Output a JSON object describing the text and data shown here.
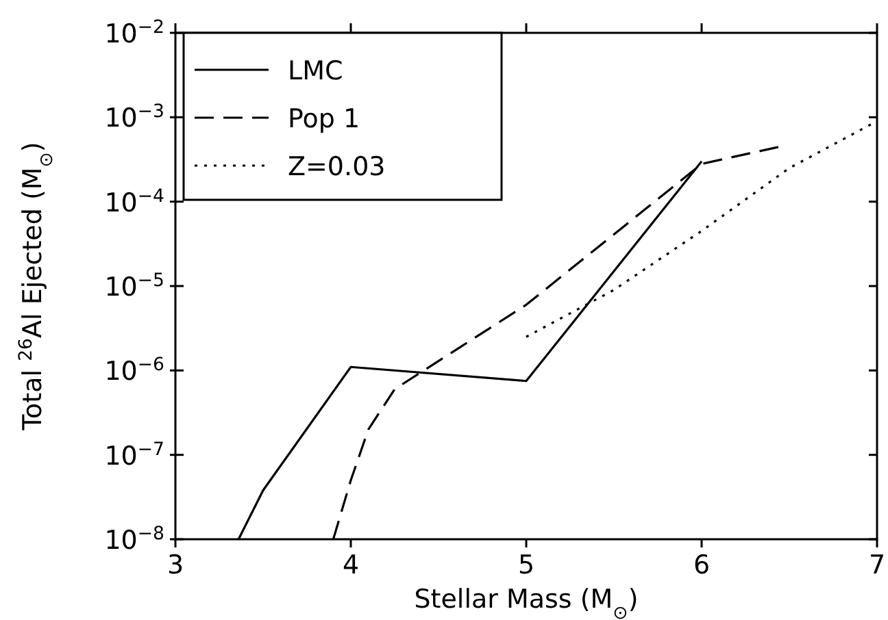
{
  "chart_data": {
    "type": "line",
    "xlabel": "Stellar Mass (M$_{⊙}$)",
    "ylabel": "Total $^{26}$Al Ejected (M$_{⊙}$)",
    "log": "y",
    "xlim": [
      3,
      7
    ],
    "ylim": [
      1e-08,
      0.01
    ],
    "xticks": [
      3,
      4,
      5,
      6,
      7
    ],
    "yticks": [
      {
        "value": 1e-08,
        "label": "10$^{−8}$"
      },
      {
        "value": 1e-07,
        "label": "10$^{−7}$"
      },
      {
        "value": 1e-06,
        "label": "10$^{−6}$"
      },
      {
        "value": 1e-05,
        "label": "10$^{−5}$"
      },
      {
        "value": 0.0001,
        "label": "10$^{−4}$"
      },
      {
        "value": 0.001,
        "label": "10$^{−3}$"
      },
      {
        "value": 0.01,
        "label": "10$^{−2}$"
      }
    ],
    "legend": "top left",
    "grid": false,
    "series": [
      {
        "name": "LMC",
        "color": "#000000",
        "line_style": "solid",
        "x": [
          3.36,
          3.5,
          4,
          5,
          6
        ],
        "values": [
          1e-08,
          3.8e-08,
          1.1e-06,
          7.5e-07,
          0.0003
        ]
      },
      {
        "name": "Pop 1",
        "color": "#000000",
        "line_style": "dashed",
        "x": [
          3.9,
          4,
          4.1,
          4.25,
          5,
          6,
          6.45
        ],
        "values": [
          1e-08,
          5e-08,
          2e-07,
          6e-07,
          6e-06,
          0.00028,
          0.00045
        ]
      },
      {
        "name": "Z=0.03",
        "color": "#000000",
        "line_style": "dotted",
        "x": [
          5,
          5.5,
          6,
          6.5,
          7
        ],
        "values": [
          2.5e-06,
          9e-06,
          4.5e-05,
          0.00025,
          0.0009
        ]
      }
    ]
  }
}
